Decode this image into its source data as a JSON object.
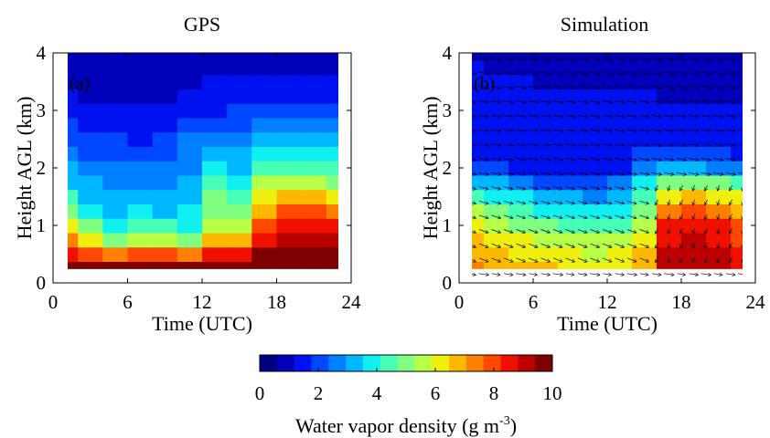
{
  "chart_data": [
    {
      "type": "heatmap",
      "title": "GPS",
      "panel_label": "(a)",
      "xlabel": "Time (UTC)",
      "ylabel": "Height AGL (km)",
      "xlim": [
        0,
        24
      ],
      "ylim": [
        0,
        4
      ],
      "xticks": [
        "0",
        "6",
        "12",
        "18",
        "24"
      ],
      "yticks": [
        "0",
        "1",
        "2",
        "3",
        "4"
      ],
      "x_hours": [
        1,
        3,
        5,
        7,
        9,
        11,
        13,
        15,
        17,
        19,
        21,
        23
      ],
      "y_km": [
        0.25,
        0.5,
        0.75,
        1.0,
        1.25,
        1.5,
        1.75,
        2.0,
        2.25,
        2.5,
        2.75,
        3.0,
        3.25,
        3.5,
        3.75,
        4.0
      ],
      "values_g_m3": [
        [
          10,
          9.8,
          9.6,
          9.8,
          9.8,
          9.6,
          10,
          10,
          10,
          10,
          10,
          10
        ],
        [
          8.8,
          8.0,
          7.5,
          7.8,
          7.9,
          7.6,
          8.5,
          8.6,
          9.6,
          9.8,
          9.9,
          9.9
        ],
        [
          7.2,
          6.0,
          5.2,
          5.5,
          5.6,
          5.2,
          6.8,
          6.8,
          8.5,
          9.0,
          9.0,
          9.0
        ],
        [
          6.0,
          4.8,
          4.0,
          4.4,
          4.2,
          4.0,
          5.8,
          5.8,
          7.8,
          8.5,
          8.8,
          8.6
        ],
        [
          5.0,
          4.0,
          3.4,
          3.6,
          3.2,
          3.6,
          5.2,
          5.0,
          7.0,
          7.8,
          7.8,
          7.6
        ],
        [
          4.2,
          3.4,
          3.0,
          3.2,
          3.0,
          3.4,
          4.8,
          4.5,
          6.3,
          6.6,
          6.6,
          6.4
        ],
        [
          3.5,
          3.0,
          2.8,
          2.8,
          2.9,
          3.2,
          4.2,
          3.8,
          5.4,
          5.6,
          5.4,
          5.2
        ],
        [
          3.0,
          2.6,
          2.8,
          2.4,
          2.6,
          2.8,
          3.6,
          3.4,
          4.6,
          4.6,
          4.4,
          4.2
        ],
        [
          2.6,
          2.3,
          2.2,
          2.0,
          2.3,
          2.6,
          3.2,
          3.2,
          4.0,
          4.0,
          3.8,
          3.6
        ],
        [
          2.2,
          1.8,
          1.8,
          1.6,
          1.9,
          2.4,
          2.6,
          2.8,
          3.2,
          3.2,
          3.0,
          3.0
        ],
        [
          1.8,
          1.5,
          1.5,
          1.4,
          1.6,
          1.9,
          2.0,
          2.2,
          2.5,
          2.5,
          2.5,
          2.4
        ],
        [
          1.5,
          1.3,
          1.3,
          1.2,
          1.3,
          1.5,
          1.6,
          1.8,
          2.0,
          2.0,
          2.0,
          2.0
        ],
        [
          1.3,
          1.1,
          1.1,
          1.0,
          1.1,
          1.3,
          1.4,
          1.5,
          1.6,
          1.6,
          1.6,
          1.6
        ],
        [
          1.1,
          1.0,
          1.0,
          0.9,
          1.0,
          1.1,
          1.2,
          1.2,
          1.3,
          1.3,
          1.3,
          1.3
        ],
        [
          0.9,
          0.8,
          0.8,
          0.8,
          0.8,
          0.9,
          1.0,
          1.0,
          1.1,
          1.1,
          1.1,
          1.1
        ],
        [
          0.8,
          0.7,
          0.7,
          0.7,
          0.7,
          0.8,
          0.8,
          0.8,
          0.9,
          0.9,
          0.9,
          0.9
        ]
      ]
    },
    {
      "type": "heatmap",
      "title": "Simulation",
      "panel_label": "(b)",
      "xlabel": "Time (UTC)",
      "ylabel": "Height AGL (km)",
      "xlim": [
        0,
        24
      ],
      "ylim": [
        0,
        4
      ],
      "xticks": [
        "0",
        "6",
        "12",
        "18",
        "24"
      ],
      "yticks": [
        "0",
        "1",
        "2",
        "3",
        "4"
      ],
      "x_hours": [
        1,
        3,
        5,
        7,
        9,
        11,
        13,
        15,
        17,
        19,
        21,
        23
      ],
      "y_km": [
        0.25,
        0.5,
        0.75,
        1.0,
        1.25,
        1.5,
        1.75,
        2.0,
        2.25,
        2.5,
        2.75,
        3.0,
        3.25,
        3.5,
        3.75,
        4.0
      ],
      "values_g_m3": [
        [
          7.2,
          7.0,
          6.8,
          6.6,
          6.4,
          6.2,
          6.4,
          7.0,
          9.2,
          9.4,
          9.0,
          8.4
        ],
        [
          7.0,
          6.8,
          6.4,
          6.2,
          6.0,
          5.8,
          6.0,
          6.8,
          9.0,
          9.2,
          9.0,
          8.4
        ],
        [
          6.6,
          6.3,
          6.0,
          5.7,
          5.5,
          5.3,
          5.5,
          6.4,
          8.8,
          9.0,
          8.8,
          8.2
        ],
        [
          6.0,
          5.6,
          5.2,
          4.8,
          4.6,
          4.4,
          4.6,
          5.8,
          8.4,
          8.6,
          8.4,
          7.8
        ],
        [
          5.4,
          4.9,
          4.4,
          4.0,
          3.8,
          3.6,
          3.8,
          5.2,
          7.6,
          7.8,
          7.6,
          7.0
        ],
        [
          4.6,
          4.1,
          3.6,
          3.2,
          3.0,
          2.9,
          3.2,
          4.6,
          6.4,
          6.6,
          6.4,
          6.0
        ],
        [
          3.4,
          3.0,
          2.6,
          2.3,
          2.2,
          2.1,
          2.4,
          3.6,
          5.0,
          5.2,
          5.0,
          4.6
        ],
        [
          2.0,
          1.9,
          1.7,
          1.6,
          1.5,
          1.5,
          1.7,
          2.6,
          3.0,
          3.2,
          2.8,
          2.4
        ],
        [
          1.6,
          1.6,
          1.6,
          1.5,
          1.5,
          1.5,
          1.5,
          1.8,
          2.0,
          2.2,
          2.0,
          1.6
        ],
        [
          1.4,
          1.4,
          1.4,
          1.4,
          1.4,
          1.4,
          1.4,
          1.4,
          1.5,
          1.7,
          1.5,
          1.3
        ],
        [
          1.4,
          1.4,
          1.4,
          1.3,
          1.3,
          1.3,
          1.3,
          1.3,
          1.3,
          1.3,
          1.3,
          1.2
        ],
        [
          1.3,
          1.3,
          1.3,
          1.3,
          1.3,
          1.3,
          1.2,
          1.2,
          1.2,
          1.2,
          1.2,
          1.2
        ],
        [
          1.2,
          1.2,
          1.2,
          1.2,
          1.2,
          1.2,
          1.2,
          1.2,
          1.1,
          1.1,
          1.1,
          1.1
        ],
        [
          1.2,
          1.2,
          1.2,
          1.1,
          1.1,
          1.1,
          1.0,
          0.9,
          0.9,
          1.0,
          1.1,
          1.1
        ],
        [
          1.2,
          1.1,
          1.1,
          1.1,
          1.0,
          0.9,
          0.9,
          0.8,
          0.8,
          0.9,
          1.0,
          1.1
        ],
        [
          1.1,
          1.1,
          1.0,
          1.0,
          0.9,
          0.8,
          0.8,
          0.8,
          0.8,
          0.8,
          0.9,
          1.0
        ]
      ],
      "wind_vectors": true
    }
  ],
  "colorbar": {
    "label_main": "Water vapor density (g m",
    "label_exp": "-3",
    "label_end": ")",
    "min": 0,
    "max": 10,
    "ticks": [
      "0",
      "2",
      "4",
      "6",
      "8",
      "10"
    ],
    "colors": [
      "#00007f",
      "#0000bb",
      "#0011f0",
      "#0048ff",
      "#0080ff",
      "#00b8ff",
      "#10f0f0",
      "#48ffb8",
      "#80ff80",
      "#b8ff48",
      "#f0f010",
      "#ffb800",
      "#ff8000",
      "#ff4800",
      "#f01000",
      "#bb0000",
      "#7f0000"
    ]
  }
}
